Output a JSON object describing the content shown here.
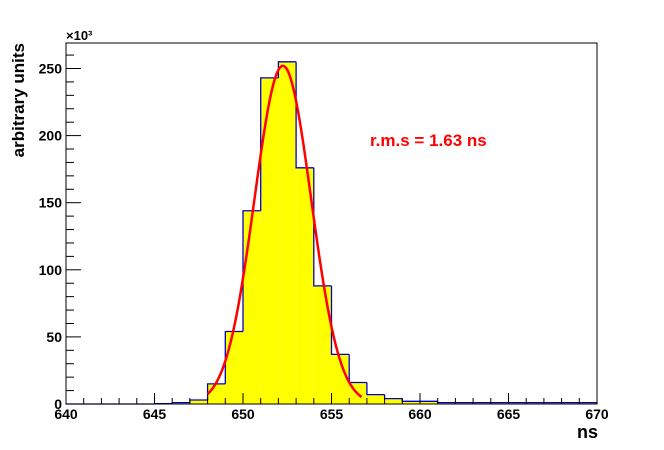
{
  "chart_data": {
    "type": "histogram",
    "xlabel": "ns",
    "ylabel": "arbitrary units",
    "y_multiplier": "×10³",
    "annotation": "r.m.s = 1.63 ns",
    "bins": [
      640,
      641,
      642,
      643,
      644,
      645,
      646,
      647,
      648,
      649,
      650,
      651,
      652,
      653,
      654,
      655,
      656,
      657,
      658,
      659,
      660,
      661,
      662,
      663,
      664,
      665,
      666,
      667,
      668,
      669,
      670
    ],
    "values": [
      0,
      0,
      0,
      0,
      0,
      0.3,
      1,
      3,
      15,
      54,
      144,
      243,
      255,
      176,
      88,
      37,
      16,
      7,
      4,
      2,
      2,
      1,
      1,
      1,
      1,
      1,
      1,
      1,
      1,
      1
    ],
    "fill_color": "#ffff00",
    "line_color": "#0000cc",
    "fit": {
      "mean": 652.25,
      "sigma": 1.6,
      "amplitude": 252,
      "xrange": [
        648,
        656.7
      ],
      "color": "#ff0000"
    },
    "xlim": [
      640,
      670
    ],
    "ylim": [
      0,
      269
    ],
    "xticks": [
      640,
      645,
      650,
      655,
      660,
      665,
      670
    ],
    "yticks": [
      0,
      50,
      100,
      150,
      200,
      250
    ]
  }
}
